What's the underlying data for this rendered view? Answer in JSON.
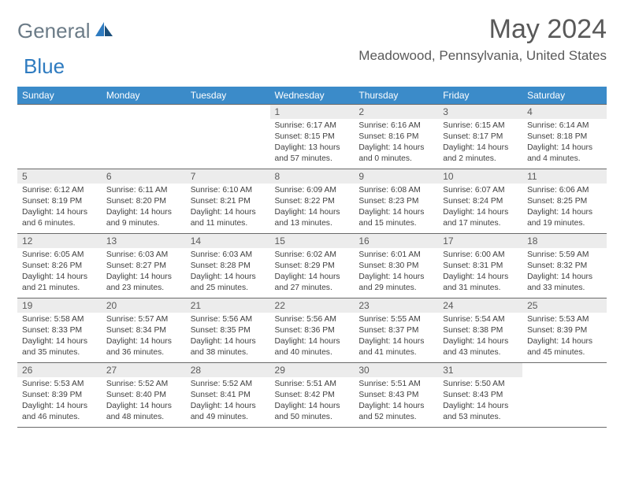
{
  "brand": {
    "part1": "General",
    "part2": "Blue"
  },
  "title": "May 2024",
  "location": "Meadowood, Pennsylvania, United States",
  "colors": {
    "header_bg": "#3b8bc9",
    "header_text": "#ffffff",
    "daynum_bg": "#ececec",
    "border": "#6a6a6a",
    "title_color": "#595959",
    "logo_gray": "#6b7b87",
    "logo_blue": "#2e7bc0"
  },
  "day_headers": [
    "Sunday",
    "Monday",
    "Tuesday",
    "Wednesday",
    "Thursday",
    "Friday",
    "Saturday"
  ],
  "weeks": [
    [
      {
        "n": "",
        "sr": "",
        "ss": "",
        "dl": ""
      },
      {
        "n": "",
        "sr": "",
        "ss": "",
        "dl": ""
      },
      {
        "n": "",
        "sr": "",
        "ss": "",
        "dl": ""
      },
      {
        "n": "1",
        "sr": "6:17 AM",
        "ss": "8:15 PM",
        "dl": "13 hours and 57 minutes."
      },
      {
        "n": "2",
        "sr": "6:16 AM",
        "ss": "8:16 PM",
        "dl": "14 hours and 0 minutes."
      },
      {
        "n": "3",
        "sr": "6:15 AM",
        "ss": "8:17 PM",
        "dl": "14 hours and 2 minutes."
      },
      {
        "n": "4",
        "sr": "6:14 AM",
        "ss": "8:18 PM",
        "dl": "14 hours and 4 minutes."
      }
    ],
    [
      {
        "n": "5",
        "sr": "6:12 AM",
        "ss": "8:19 PM",
        "dl": "14 hours and 6 minutes."
      },
      {
        "n": "6",
        "sr": "6:11 AM",
        "ss": "8:20 PM",
        "dl": "14 hours and 9 minutes."
      },
      {
        "n": "7",
        "sr": "6:10 AM",
        "ss": "8:21 PM",
        "dl": "14 hours and 11 minutes."
      },
      {
        "n": "8",
        "sr": "6:09 AM",
        "ss": "8:22 PM",
        "dl": "14 hours and 13 minutes."
      },
      {
        "n": "9",
        "sr": "6:08 AM",
        "ss": "8:23 PM",
        "dl": "14 hours and 15 minutes."
      },
      {
        "n": "10",
        "sr": "6:07 AM",
        "ss": "8:24 PM",
        "dl": "14 hours and 17 minutes."
      },
      {
        "n": "11",
        "sr": "6:06 AM",
        "ss": "8:25 PM",
        "dl": "14 hours and 19 minutes."
      }
    ],
    [
      {
        "n": "12",
        "sr": "6:05 AM",
        "ss": "8:26 PM",
        "dl": "14 hours and 21 minutes."
      },
      {
        "n": "13",
        "sr": "6:03 AM",
        "ss": "8:27 PM",
        "dl": "14 hours and 23 minutes."
      },
      {
        "n": "14",
        "sr": "6:03 AM",
        "ss": "8:28 PM",
        "dl": "14 hours and 25 minutes."
      },
      {
        "n": "15",
        "sr": "6:02 AM",
        "ss": "8:29 PM",
        "dl": "14 hours and 27 minutes."
      },
      {
        "n": "16",
        "sr": "6:01 AM",
        "ss": "8:30 PM",
        "dl": "14 hours and 29 minutes."
      },
      {
        "n": "17",
        "sr": "6:00 AM",
        "ss": "8:31 PM",
        "dl": "14 hours and 31 minutes."
      },
      {
        "n": "18",
        "sr": "5:59 AM",
        "ss": "8:32 PM",
        "dl": "14 hours and 33 minutes."
      }
    ],
    [
      {
        "n": "19",
        "sr": "5:58 AM",
        "ss": "8:33 PM",
        "dl": "14 hours and 35 minutes."
      },
      {
        "n": "20",
        "sr": "5:57 AM",
        "ss": "8:34 PM",
        "dl": "14 hours and 36 minutes."
      },
      {
        "n": "21",
        "sr": "5:56 AM",
        "ss": "8:35 PM",
        "dl": "14 hours and 38 minutes."
      },
      {
        "n": "22",
        "sr": "5:56 AM",
        "ss": "8:36 PM",
        "dl": "14 hours and 40 minutes."
      },
      {
        "n": "23",
        "sr": "5:55 AM",
        "ss": "8:37 PM",
        "dl": "14 hours and 41 minutes."
      },
      {
        "n": "24",
        "sr": "5:54 AM",
        "ss": "8:38 PM",
        "dl": "14 hours and 43 minutes."
      },
      {
        "n": "25",
        "sr": "5:53 AM",
        "ss": "8:39 PM",
        "dl": "14 hours and 45 minutes."
      }
    ],
    [
      {
        "n": "26",
        "sr": "5:53 AM",
        "ss": "8:39 PM",
        "dl": "14 hours and 46 minutes."
      },
      {
        "n": "27",
        "sr": "5:52 AM",
        "ss": "8:40 PM",
        "dl": "14 hours and 48 minutes."
      },
      {
        "n": "28",
        "sr": "5:52 AM",
        "ss": "8:41 PM",
        "dl": "14 hours and 49 minutes."
      },
      {
        "n": "29",
        "sr": "5:51 AM",
        "ss": "8:42 PM",
        "dl": "14 hours and 50 minutes."
      },
      {
        "n": "30",
        "sr": "5:51 AM",
        "ss": "8:43 PM",
        "dl": "14 hours and 52 minutes."
      },
      {
        "n": "31",
        "sr": "5:50 AM",
        "ss": "8:43 PM",
        "dl": "14 hours and 53 minutes."
      },
      {
        "n": "",
        "sr": "",
        "ss": "",
        "dl": ""
      }
    ]
  ],
  "labels": {
    "sunrise": "Sunrise:",
    "sunset": "Sunset:",
    "daylight": "Daylight:"
  }
}
